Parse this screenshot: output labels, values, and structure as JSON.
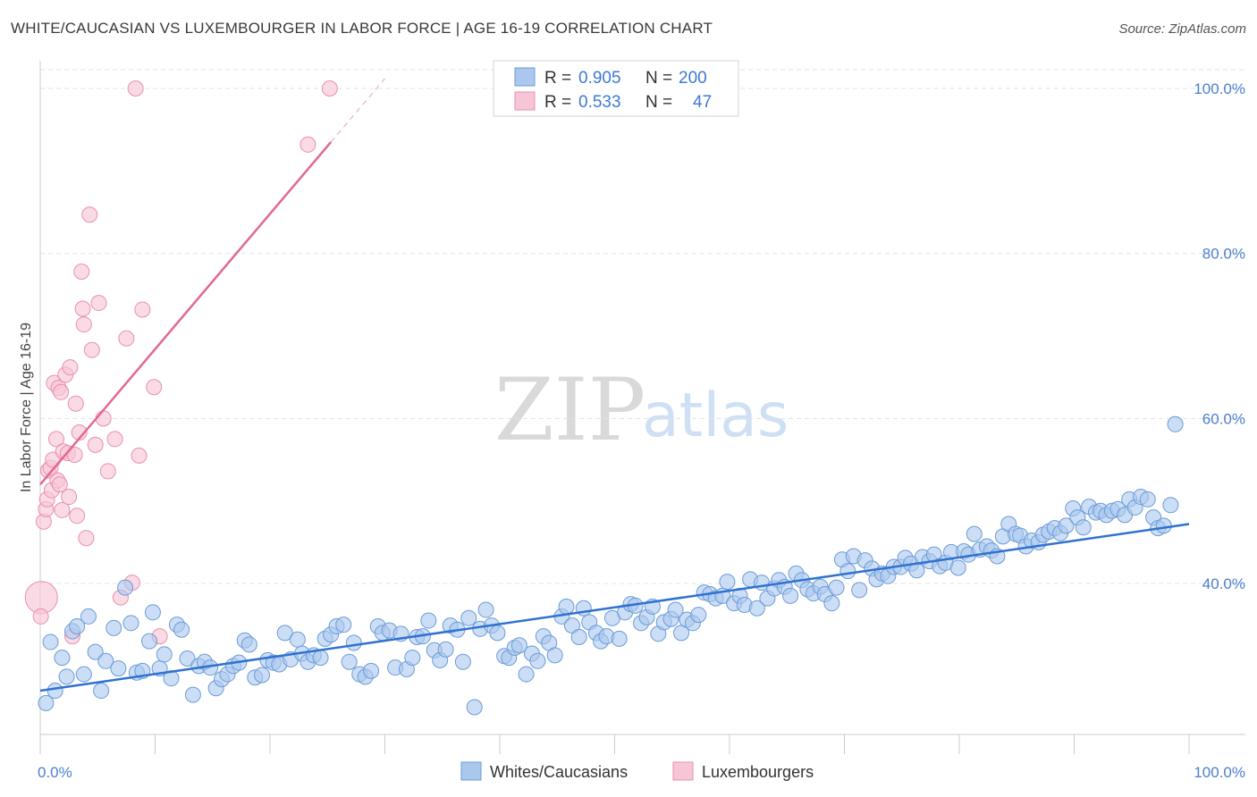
{
  "header": {
    "title": "WHITE/CAUCASIAN VS LUXEMBOURGER IN LABOR FORCE | AGE 16-19 CORRELATION CHART",
    "source": "Source: ZipAtlas.com"
  },
  "watermark": {
    "zip": "ZIP",
    "atlas": "atlas"
  },
  "legend": {
    "rows": [
      {
        "r_label": "R =",
        "r_value": "0.905",
        "n_label": "N =",
        "n_value": "200"
      },
      {
        "r_label": "R =",
        "r_value": "0.533",
        "n_label": "N =",
        "n_value": "47"
      }
    ]
  },
  "bottom_legend": {
    "items": [
      {
        "label": "Whites/Caucasians"
      },
      {
        "label": "Luxembourgers"
      }
    ]
  },
  "colors": {
    "blue_fill": "#aac8ee",
    "blue_stroke": "#6b9bd8",
    "blue_line": "#2f72d0",
    "pink_fill": "#f7c6d6",
    "pink_stroke": "#ea8fad",
    "pink_line": "#e2688f",
    "grid": "#e3e3e3",
    "tick_text": "#4a7fd0"
  },
  "chart_data": {
    "type": "scatter",
    "title": "WHITE/CAUCASIAN VS LUXEMBOURGER IN LABOR FORCE | AGE 16-19 CORRELATION CHART",
    "xlabel": "",
    "ylabel": "In Labor Force | Age 16-19",
    "xlim": [
      0,
      100
    ],
    "ylim": [
      20,
      103
    ],
    "x_ticks": [
      0,
      10,
      20,
      30,
      40,
      50,
      60,
      70,
      80,
      90,
      100
    ],
    "x_tick_labels": {
      "0": "0.0%",
      "100": "100.0%"
    },
    "y_ticks": [
      40,
      60,
      80,
      100
    ],
    "y_tick_labels": [
      "40.0%",
      "60.0%",
      "80.0%",
      "100.0%"
    ],
    "series": [
      {
        "name": "Whites/Caucasians",
        "r": 0.905,
        "n": 200,
        "trend": {
          "x0": 0,
          "y0": 27.0,
          "x1": 100,
          "y1": 47.2
        },
        "points": [
          [
            0.5,
            25.5
          ],
          [
            0.9,
            32.9
          ],
          [
            1.3,
            27.0
          ],
          [
            1.9,
            31.0
          ],
          [
            2.3,
            28.7
          ],
          [
            2.8,
            34.2
          ],
          [
            3.2,
            34.8
          ],
          [
            3.8,
            29.0
          ],
          [
            4.2,
            36.0
          ],
          [
            4.8,
            31.7
          ],
          [
            5.3,
            27.0
          ],
          [
            5.7,
            30.6
          ],
          [
            6.4,
            34.6
          ],
          [
            6.8,
            29.7
          ],
          [
            7.4,
            39.5
          ],
          [
            7.9,
            35.2
          ],
          [
            8.4,
            29.2
          ],
          [
            8.9,
            29.4
          ],
          [
            9.5,
            33.0
          ],
          [
            9.8,
            36.5
          ],
          [
            10.4,
            29.7
          ],
          [
            10.8,
            31.4
          ],
          [
            11.4,
            28.5
          ],
          [
            11.9,
            35.0
          ],
          [
            12.3,
            34.4
          ],
          [
            12.8,
            30.9
          ],
          [
            13.3,
            26.5
          ],
          [
            13.8,
            30.0
          ],
          [
            14.3,
            30.5
          ],
          [
            14.8,
            29.8
          ],
          [
            15.3,
            27.3
          ],
          [
            15.8,
            28.4
          ],
          [
            16.3,
            29.0
          ],
          [
            16.8,
            30.0
          ],
          [
            17.3,
            30.4
          ],
          [
            17.8,
            33.1
          ],
          [
            18.2,
            32.6
          ],
          [
            18.7,
            28.6
          ],
          [
            19.3,
            28.9
          ],
          [
            19.8,
            30.7
          ],
          [
            20.3,
            30.4
          ],
          [
            20.8,
            30.2
          ],
          [
            21.3,
            34.0
          ],
          [
            21.8,
            30.8
          ],
          [
            22.4,
            33.2
          ],
          [
            22.8,
            31.5
          ],
          [
            23.3,
            30.5
          ],
          [
            23.8,
            31.3
          ],
          [
            24.4,
            31.0
          ],
          [
            24.8,
            33.3
          ],
          [
            25.3,
            33.8
          ],
          [
            25.8,
            34.8
          ],
          [
            26.4,
            35.0
          ],
          [
            26.9,
            30.5
          ],
          [
            27.3,
            32.8
          ],
          [
            27.8,
            29.0
          ],
          [
            28.3,
            28.7
          ],
          [
            28.8,
            29.4
          ],
          [
            29.4,
            34.8
          ],
          [
            29.8,
            34.0
          ],
          [
            30.4,
            34.3
          ],
          [
            30.9,
            29.8
          ],
          [
            31.4,
            33.9
          ],
          [
            31.9,
            29.6
          ],
          [
            32.4,
            31.0
          ],
          [
            32.8,
            33.5
          ],
          [
            33.3,
            33.6
          ],
          [
            33.8,
            35.5
          ],
          [
            34.3,
            31.9
          ],
          [
            34.8,
            30.7
          ],
          [
            35.3,
            32.0
          ],
          [
            35.7,
            34.9
          ],
          [
            36.3,
            34.4
          ],
          [
            36.8,
            30.5
          ],
          [
            37.3,
            35.8
          ],
          [
            37.8,
            25.0
          ],
          [
            38.3,
            34.5
          ],
          [
            38.8,
            36.8
          ],
          [
            39.3,
            34.9
          ],
          [
            39.8,
            34.0
          ],
          [
            40.4,
            31.2
          ],
          [
            40.8,
            31.0
          ],
          [
            41.3,
            32.2
          ],
          [
            41.7,
            32.5
          ],
          [
            42.3,
            29.0
          ],
          [
            42.8,
            31.5
          ],
          [
            43.3,
            30.6
          ],
          [
            43.8,
            33.6
          ],
          [
            44.3,
            32.8
          ],
          [
            44.8,
            31.3
          ],
          [
            45.4,
            36.0
          ],
          [
            45.8,
            37.2
          ],
          [
            46.3,
            34.9
          ],
          [
            46.9,
            33.5
          ],
          [
            47.3,
            37.0
          ],
          [
            47.8,
            35.3
          ],
          [
            48.4,
            34.0
          ],
          [
            48.8,
            33.0
          ],
          [
            49.3,
            33.6
          ],
          [
            49.8,
            35.8
          ],
          [
            50.4,
            33.3
          ],
          [
            50.9,
            36.5
          ],
          [
            51.4,
            37.5
          ],
          [
            51.8,
            37.3
          ],
          [
            52.3,
            35.2
          ],
          [
            52.8,
            35.9
          ],
          [
            53.3,
            37.2
          ],
          [
            53.8,
            33.9
          ],
          [
            54.3,
            35.3
          ],
          [
            54.9,
            35.7
          ],
          [
            55.3,
            36.8
          ],
          [
            55.8,
            34.0
          ],
          [
            56.3,
            35.6
          ],
          [
            56.8,
            35.2
          ],
          [
            57.3,
            36.2
          ],
          [
            57.8,
            38.9
          ],
          [
            58.3,
            38.7
          ],
          [
            58.8,
            38.2
          ],
          [
            59.4,
            38.5
          ],
          [
            59.8,
            40.2
          ],
          [
            60.4,
            37.6
          ],
          [
            60.9,
            38.5
          ],
          [
            61.3,
            37.4
          ],
          [
            61.8,
            40.5
          ],
          [
            62.4,
            37.0
          ],
          [
            62.8,
            40.1
          ],
          [
            63.3,
            38.2
          ],
          [
            63.9,
            39.4
          ],
          [
            64.3,
            40.4
          ],
          [
            64.8,
            39.6
          ],
          [
            65.3,
            38.5
          ],
          [
            65.8,
            41.2
          ],
          [
            66.3,
            40.4
          ],
          [
            66.8,
            39.3
          ],
          [
            67.3,
            38.8
          ],
          [
            67.9,
            39.6
          ],
          [
            68.3,
            38.7
          ],
          [
            68.9,
            37.6
          ],
          [
            69.3,
            39.5
          ],
          [
            69.8,
            42.9
          ],
          [
            70.3,
            41.5
          ],
          [
            70.8,
            43.3
          ],
          [
            71.3,
            39.2
          ],
          [
            71.8,
            42.8
          ],
          [
            72.4,
            41.8
          ],
          [
            72.8,
            40.5
          ],
          [
            73.3,
            41.2
          ],
          [
            73.8,
            40.9
          ],
          [
            74.3,
            42.0
          ],
          [
            74.9,
            42.0
          ],
          [
            75.3,
            43.1
          ],
          [
            75.8,
            42.4
          ],
          [
            76.3,
            41.6
          ],
          [
            76.8,
            43.2
          ],
          [
            77.4,
            42.7
          ],
          [
            77.8,
            43.5
          ],
          [
            78.3,
            42.1
          ],
          [
            78.8,
            42.5
          ],
          [
            79.3,
            43.8
          ],
          [
            79.9,
            41.9
          ],
          [
            80.4,
            43.9
          ],
          [
            80.8,
            43.5
          ],
          [
            81.3,
            46.0
          ],
          [
            81.8,
            44.1
          ],
          [
            82.4,
            44.5
          ],
          [
            82.8,
            44.0
          ],
          [
            83.3,
            43.3
          ],
          [
            83.8,
            45.7
          ],
          [
            84.3,
            47.2
          ],
          [
            84.9,
            46.0
          ],
          [
            85.3,
            45.8
          ],
          [
            85.8,
            44.5
          ],
          [
            86.3,
            45.2
          ],
          [
            86.9,
            45.0
          ],
          [
            87.3,
            45.9
          ],
          [
            87.8,
            46.3
          ],
          [
            88.3,
            46.7
          ],
          [
            88.8,
            46.1
          ],
          [
            89.3,
            47.0
          ],
          [
            89.9,
            49.1
          ],
          [
            90.3,
            48.0
          ],
          [
            90.8,
            46.8
          ],
          [
            91.3,
            49.3
          ],
          [
            91.9,
            48.6
          ],
          [
            92.3,
            48.8
          ],
          [
            92.8,
            48.3
          ],
          [
            93.3,
            48.8
          ],
          [
            93.8,
            49.0
          ],
          [
            94.4,
            48.3
          ],
          [
            94.8,
            50.2
          ],
          [
            95.3,
            49.2
          ],
          [
            95.8,
            50.5
          ],
          [
            96.4,
            50.2
          ],
          [
            96.9,
            48.0
          ],
          [
            97.3,
            46.7
          ],
          [
            97.8,
            47.0
          ],
          [
            98.4,
            49.5
          ],
          [
            98.8,
            59.3
          ]
        ]
      },
      {
        "name": "Luxembourgers",
        "r": 0.533,
        "n": 47,
        "trend": {
          "x0": 0,
          "y0": 52.0,
          "x1": 25.3,
          "y1": 93.5,
          "dash_to_x": 30.0,
          "dash_to_y": 101.2
        },
        "points": [
          [
            0.1,
            38.3
          ],
          [
            0.3,
            47.5
          ],
          [
            0.5,
            49.0
          ],
          [
            0.6,
            50.2
          ],
          [
            0.7,
            53.7
          ],
          [
            0.9,
            54.0
          ],
          [
            1.0,
            51.3
          ],
          [
            1.1,
            55.0
          ],
          [
            1.2,
            64.3
          ],
          [
            1.4,
            57.5
          ],
          [
            1.5,
            52.5
          ],
          [
            1.6,
            63.7
          ],
          [
            1.7,
            52.0
          ],
          [
            1.8,
            63.2
          ],
          [
            1.9,
            48.9
          ],
          [
            2.0,
            56.0
          ],
          [
            2.2,
            65.3
          ],
          [
            2.4,
            55.8
          ],
          [
            2.5,
            50.5
          ],
          [
            2.6,
            66.2
          ],
          [
            2.8,
            33.6
          ],
          [
            3.0,
            55.6
          ],
          [
            3.1,
            61.8
          ],
          [
            3.2,
            48.2
          ],
          [
            3.4,
            58.3
          ],
          [
            3.6,
            77.8
          ],
          [
            3.7,
            73.3
          ],
          [
            3.8,
            71.4
          ],
          [
            4.0,
            45.5
          ],
          [
            4.3,
            84.7
          ],
          [
            4.5,
            68.3
          ],
          [
            4.8,
            56.8
          ],
          [
            5.1,
            74.0
          ],
          [
            5.5,
            60.0
          ],
          [
            5.9,
            53.6
          ],
          [
            6.5,
            57.5
          ],
          [
            7.0,
            38.3
          ],
          [
            7.5,
            69.7
          ],
          [
            8.0,
            40.1
          ],
          [
            8.3,
            100.0
          ],
          [
            8.6,
            55.5
          ],
          [
            8.9,
            73.2
          ],
          [
            9.9,
            63.8
          ],
          [
            10.4,
            33.6
          ],
          [
            23.3,
            93.2
          ],
          [
            25.2,
            100.0
          ],
          [
            0.05,
            36.0
          ]
        ]
      }
    ]
  }
}
